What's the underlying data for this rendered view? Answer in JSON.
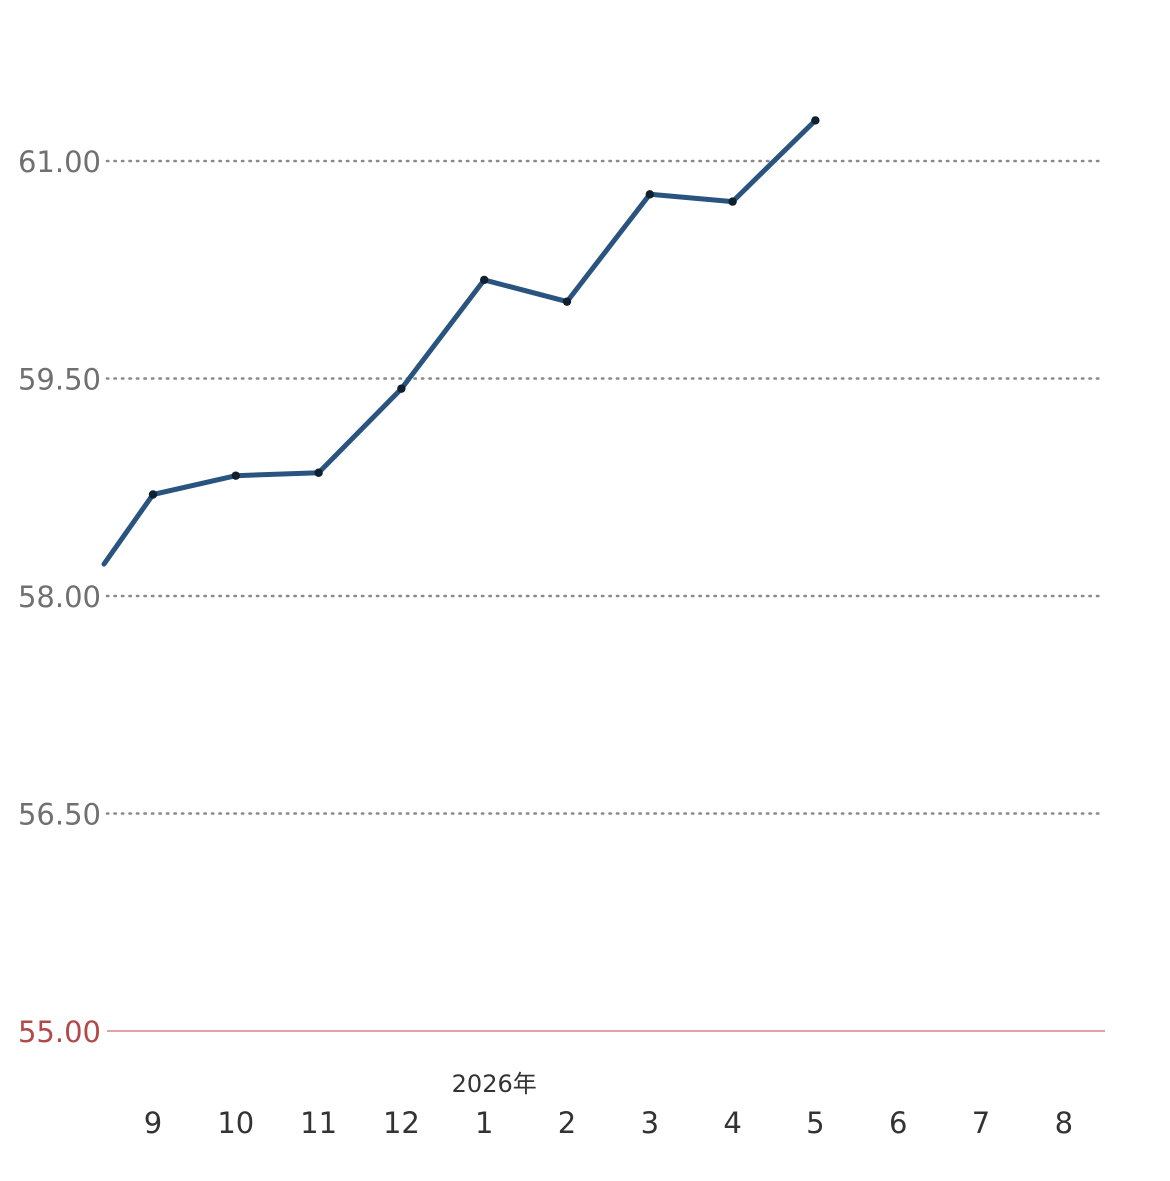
{
  "chart_data": {
    "type": "line",
    "x": [
      "9",
      "10",
      "11",
      "12",
      "1",
      "2",
      "3",
      "4",
      "5"
    ],
    "x_ticks": [
      "9",
      "10",
      "11",
      "12",
      "1",
      "2",
      "3",
      "4",
      "5",
      "6",
      "7",
      "8"
    ],
    "year_label": "2026年",
    "series": [
      {
        "values": [
          58.7,
          58.83,
          58.85,
          59.43,
          60.18,
          60.03,
          60.77,
          60.72,
          61.28
        ],
        "color": "#2a5480",
        "marker_color": "#10202e"
      }
    ],
    "leading_value": 58.22,
    "y_ticks": [
      "61.00",
      "59.50",
      "58.00",
      "56.50",
      "55.00"
    ],
    "ylim": [
      55.0,
      61.3
    ],
    "grid": "dotted",
    "grid_color": "#8a8a8a",
    "baseline_value": 55.0,
    "baseline_color": "#e2a3a3",
    "baseline_label_color": "#b24a4a"
  }
}
